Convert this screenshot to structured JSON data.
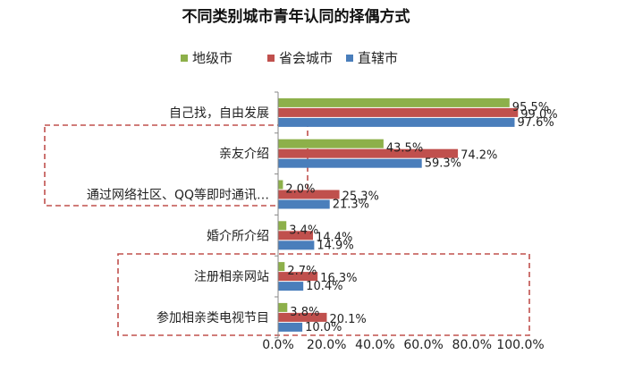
{
  "chart_data": {
    "type": "bar",
    "orientation": "horizontal",
    "title": "不同类别城市青年认同的择偶方式",
    "categories": [
      "自己找，自由发展",
      "亲友介绍",
      "通过网络社区、QQ等即时通讯…",
      "婚介所介绍",
      "注册相亲网站",
      "参加相亲类电视节目"
    ],
    "series": [
      {
        "name": "地级市",
        "values": [
          95.5,
          43.5,
          2.0,
          3.4,
          2.7,
          3.8
        ],
        "labels": [
          "95.5%",
          "43.5%",
          "2.0%",
          "3.4%",
          "2.7%",
          "3.8%"
        ]
      },
      {
        "name": "省会城市",
        "values": [
          99.0,
          74.2,
          25.3,
          14.4,
          16.3,
          20.1
        ],
        "labels": [
          "99.0%",
          "74.2%",
          "25.3%",
          "14.4%",
          "16.3%",
          "20.1%"
        ]
      },
      {
        "name": "直辖市",
        "values": [
          97.6,
          59.3,
          21.3,
          14.9,
          10.4,
          10.0
        ],
        "labels": [
          "97.6%",
          "59.3%",
          "21.3%",
          "14.9%",
          "10.4%",
          "10.0%"
        ]
      }
    ],
    "xlim": [
      0,
      100
    ],
    "xticks": [
      "0.0%",
      "20.0%",
      "40.0%",
      "60.0%",
      "80.0%",
      "100.0%"
    ],
    "legend_position": "top",
    "grid": false,
    "highlight_boxes": [
      [
        1,
        2
      ],
      [
        4,
        5
      ]
    ],
    "colors": {
      "地级市": "#8db04a",
      "省会城市": "#c0504d",
      "直辖市": "#4a7ebb",
      "highlight": "#c0504d"
    }
  }
}
